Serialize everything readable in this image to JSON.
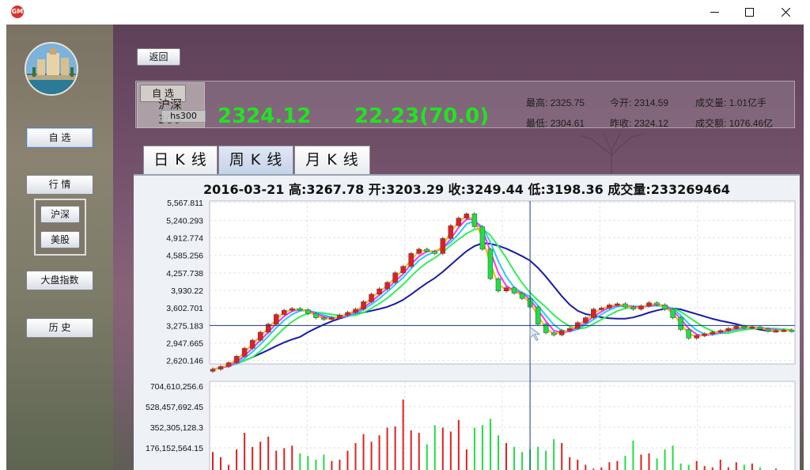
{
  "window": {
    "app_icon_label": "GM",
    "minimize": "minimize",
    "maximize": "maximize",
    "close": "close"
  },
  "sidebar": {
    "favorites": "自 选",
    "market": "行 情",
    "market_sub": [
      "沪深",
      "美股"
    ],
    "index": "大盘指数",
    "history": "历 史"
  },
  "toolbar": {
    "back": "返回"
  },
  "stock": {
    "favorite_button": "自 选",
    "name": "沪深300",
    "code": "hs300",
    "price": "2324.12",
    "change": "22.23(70.0)",
    "stats": [
      {
        "label": "最高:",
        "value": "2325.75"
      },
      {
        "label": "今开:",
        "value": "2314.59"
      },
      {
        "label": "成交量:",
        "value": "1.01亿手"
      },
      {
        "label": "最低:",
        "value": "2304.61"
      },
      {
        "label": "昨收:",
        "value": "2324.12"
      },
      {
        "label": "成交额:",
        "value": "1076.46亿"
      }
    ]
  },
  "tabs": [
    "日 K 线",
    "周 K 线",
    "月 K 线"
  ],
  "active_tab": 1,
  "crosshair_info": "2016-03-21  高:3267.78  开:3203.29  收:3249.44  低:3198.36  成交量:233269464",
  "colors": {
    "up": "#e02020",
    "down": "#22dd44",
    "ma5": "#ffbb00",
    "ma10": "#ff33ff",
    "ma20": "#22ccff",
    "ma30": "#33ee55",
    "ma60": "#1a1aaa",
    "price": "#21e321"
  },
  "chart_data": [
    {
      "type": "candlestick",
      "title": "",
      "y_ticks": [
        "5,567.811",
        "5,240.293",
        "4,912.774",
        "4,585.256",
        "4,257.738",
        "3,930.22",
        "3,602.701",
        "3,275.183",
        "2,947.665",
        "2,620.146"
      ],
      "ylim": [
        2557,
        5600
      ],
      "crosshair": {
        "date": "2016-03-21",
        "value": 3275.183
      },
      "closes": [
        2460,
        2510,
        2580,
        2700,
        2850,
        3000,
        3150,
        3300,
        3480,
        3560,
        3590,
        3570,
        3500,
        3420,
        3390,
        3420,
        3470,
        3520,
        3580,
        3720,
        3860,
        3960,
        4080,
        4260,
        4380,
        4620,
        4700,
        4660,
        4620,
        4900,
        5140,
        5280,
        5360,
        5120,
        4700,
        4150,
        3920,
        3980,
        3880,
        3780,
        3620,
        3300,
        3140,
        3100,
        3180,
        3220,
        3330,
        3420,
        3580,
        3600,
        3660,
        3680,
        3620,
        3580,
        3640,
        3700,
        3660,
        3580,
        3420,
        3200,
        3040,
        3090,
        3120,
        3150,
        3180,
        3220,
        3260,
        3230,
        3250,
        3210,
        3170,
        3180,
        3190,
        3170
      ],
      "volume_ticks": [
        "704,610,256.6",
        "528,457,692.45",
        "352,305,128.3",
        "176,152,564.15"
      ],
      "volumes": [
        190,
        150,
        90,
        210,
        340,
        230,
        270,
        310,
        200,
        220,
        240,
        180,
        160,
        130,
        170,
        120,
        130,
        200,
        260,
        330,
        270,
        320,
        380,
        390,
        600,
        360,
        340,
        250,
        400,
        380,
        350,
        440,
        210,
        380,
        400,
        450,
        320,
        260,
        230,
        190,
        210,
        230,
        200,
        290,
        260,
        150,
        130,
        90,
        60,
        70,
        110,
        120,
        160,
        280,
        170,
        180,
        140,
        210,
        240,
        100,
        90,
        120,
        80,
        70,
        130,
        70,
        110,
        90,
        100,
        70,
        50,
        60,
        50,
        40
      ]
    }
  ]
}
